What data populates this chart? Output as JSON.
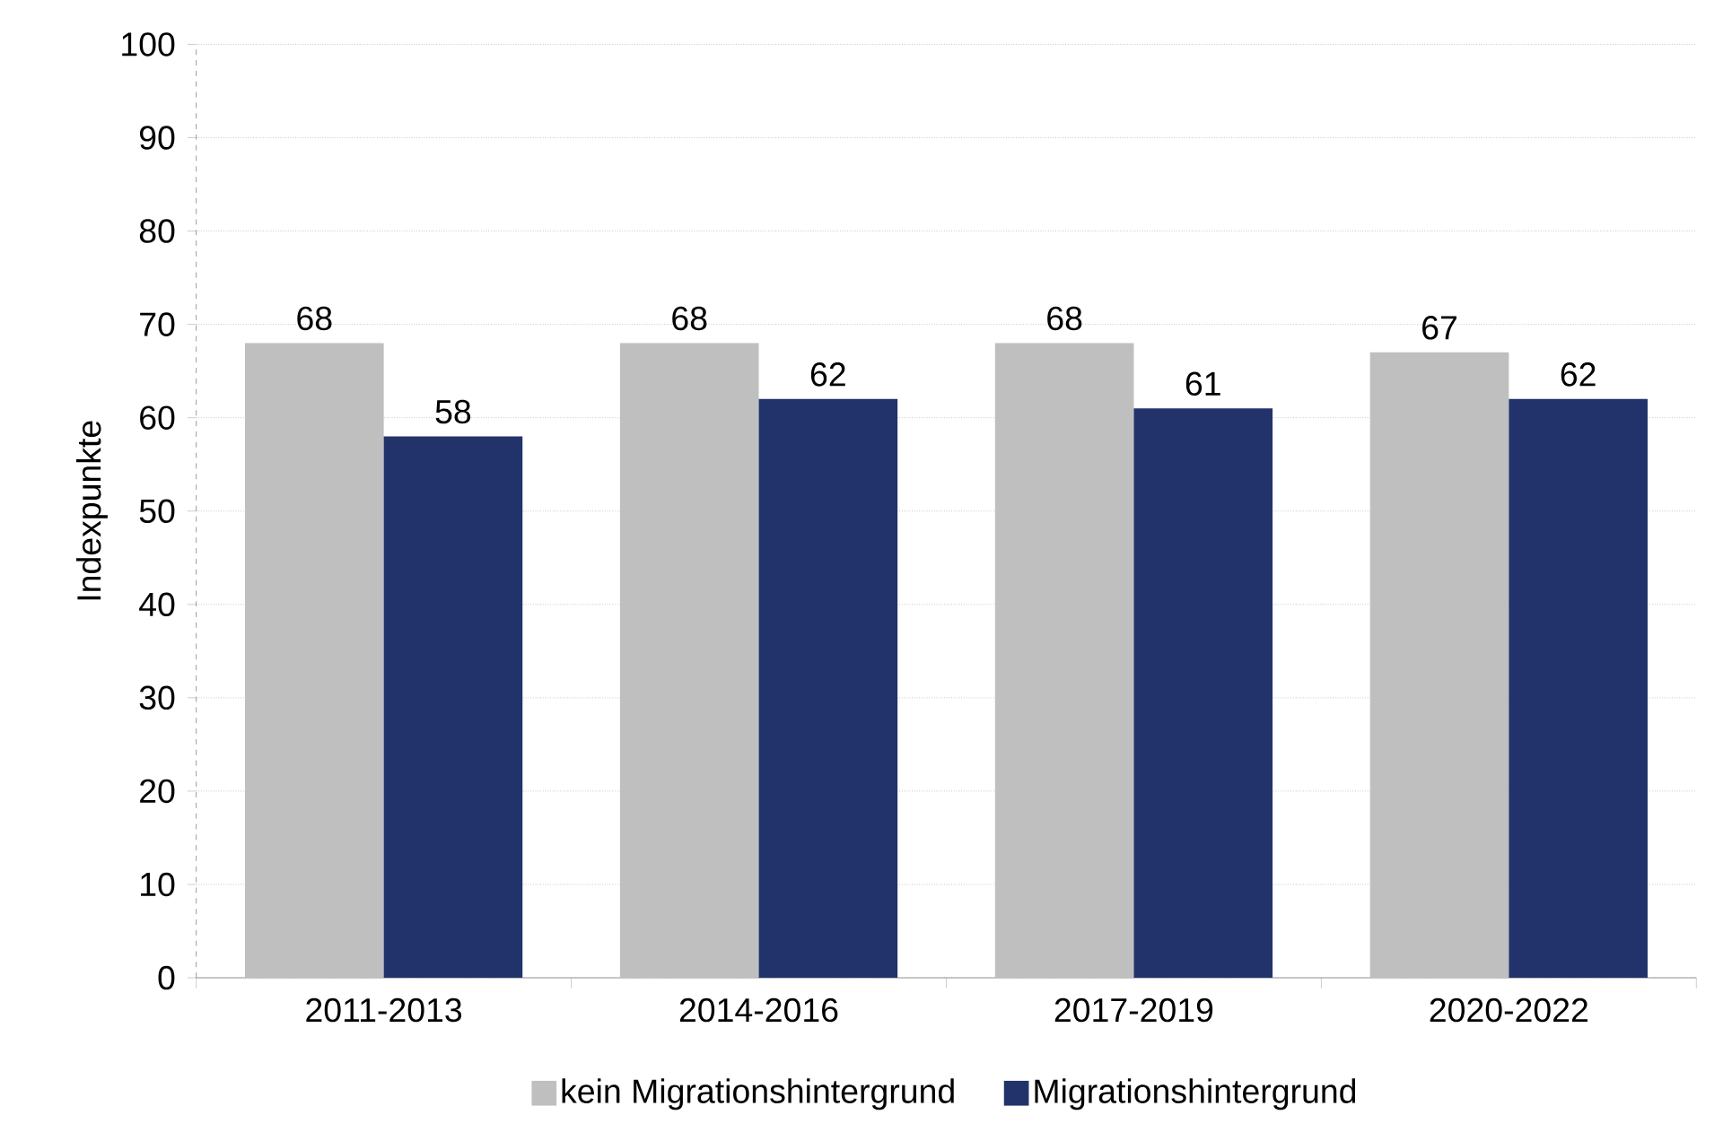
{
  "chart_data": {
    "type": "bar",
    "ylabel": "Indexpunkte",
    "categories": [
      "2011-2013",
      "2014-2016",
      "2017-2019",
      "2020-2022"
    ],
    "series": [
      {
        "name": "kein Migrationshintergrund",
        "color": "#bfbfbf",
        "values": [
          68,
          68,
          68,
          67
        ]
      },
      {
        "name": "Migrationshintergrund",
        "color": "#22336b",
        "values": [
          58,
          62,
          61,
          62
        ]
      }
    ],
    "ylim": [
      0,
      100
    ],
    "yticks": [
      0,
      10,
      20,
      30,
      40,
      50,
      60,
      70,
      80,
      90,
      100
    ],
    "grid": "y",
    "legend": "bottom",
    "data_labels": true
  }
}
